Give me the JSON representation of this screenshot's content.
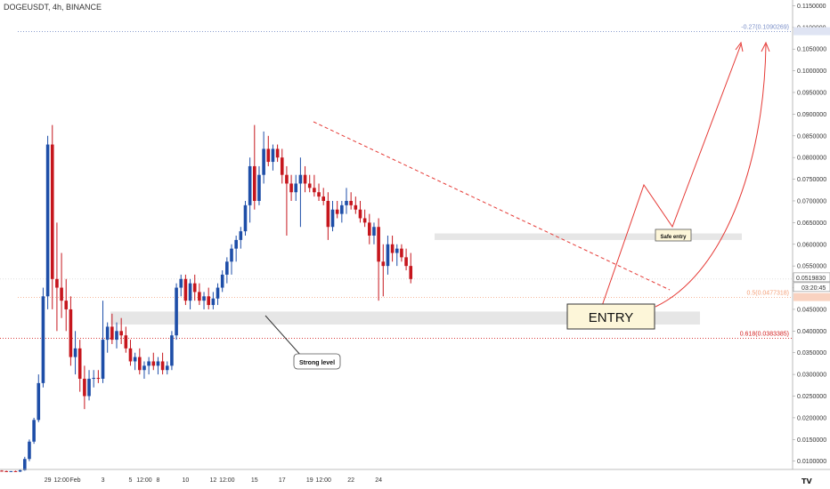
{
  "header": {
    "title": "DOGEUSDT, 4h, BINANCE"
  },
  "watermark": {
    "logo": "TV"
  },
  "colors": {
    "up": "#1e4ea8",
    "down": "#c6161d",
    "fib_top": "#7a8fc8",
    "fib_mid": "#f4a07a",
    "fib_low": "#d32020",
    "trend": "#e53935",
    "arrow": "#e53935"
  },
  "chart_data": {
    "type": "candlestick",
    "title": "DOGEUSDT, 4h, BINANCE",
    "ylim": [
      0.0085,
      0.1155
    ],
    "y_ticks": [
      "0.1150000",
      "0.1100000",
      "0.1050000",
      "0.1000000",
      "0.0950000",
      "0.0900000",
      "0.0850000",
      "0.0800000",
      "0.0750000",
      "0.0700000",
      "0.0650000",
      "0.0600000",
      "0.0550000",
      "0.0500000",
      "0.0450000",
      "0.0400000",
      "0.0350000",
      "0.0300000",
      "0.0250000",
      "0.0200000",
      "0.0150000",
      "0.0100000"
    ],
    "x_ticks": [
      {
        "label": "29",
        "t": 10
      },
      {
        "label": "12:00",
        "t": 13
      },
      {
        "label": "Feb",
        "t": 16
      },
      {
        "label": "3",
        "t": 22
      },
      {
        "label": "5",
        "t": 28
      },
      {
        "label": "12:00",
        "t": 31
      },
      {
        "label": "8",
        "t": 34
      },
      {
        "label": "10",
        "t": 40
      },
      {
        "label": "12",
        "t": 46
      },
      {
        "label": "12:00",
        "t": 49
      },
      {
        "label": "15",
        "t": 55
      },
      {
        "label": "17",
        "t": 61
      },
      {
        "label": "19",
        "t": 67
      },
      {
        "label": "12:00",
        "t": 70
      },
      {
        "label": "22",
        "t": 76
      },
      {
        "label": "24",
        "t": 82
      }
    ],
    "candles": [
      [
        0.0078,
        0.0079,
        0.0076,
        0.0077
      ],
      [
        0.0077,
        0.0078,
        0.0075,
        0.0076
      ],
      [
        0.0076,
        0.0077,
        0.0075,
        0.0077
      ],
      [
        0.0077,
        0.0078,
        0.0076,
        0.0076
      ],
      [
        0.0076,
        0.0081,
        0.0075,
        0.0079
      ],
      [
        0.0079,
        0.011,
        0.0078,
        0.0105
      ],
      [
        0.0105,
        0.015,
        0.01,
        0.0145
      ],
      [
        0.0145,
        0.02,
        0.014,
        0.0195
      ],
      [
        0.0195,
        0.03,
        0.019,
        0.028
      ],
      [
        0.028,
        0.05,
        0.027,
        0.048
      ],
      [
        0.048,
        0.085,
        0.045,
        0.083
      ],
      [
        0.083,
        0.0875,
        0.045,
        0.052
      ],
      [
        0.052,
        0.065,
        0.04,
        0.05
      ],
      [
        0.05,
        0.058,
        0.043,
        0.047
      ],
      [
        0.047,
        0.052,
        0.04,
        0.045
      ],
      [
        0.045,
        0.048,
        0.032,
        0.034
      ],
      [
        0.034,
        0.04,
        0.03,
        0.036
      ],
      [
        0.036,
        0.038,
        0.026,
        0.029
      ],
      [
        0.029,
        0.032,
        0.022,
        0.025
      ],
      [
        0.025,
        0.031,
        0.024,
        0.029
      ],
      [
        0.029,
        0.031,
        0.027,
        0.0292
      ],
      [
        0.0292,
        0.031,
        0.028,
        0.029
      ],
      [
        0.029,
        0.047,
        0.028,
        0.038
      ],
      [
        0.038,
        0.042,
        0.035,
        0.041
      ],
      [
        0.041,
        0.044,
        0.037,
        0.038
      ],
      [
        0.038,
        0.042,
        0.036,
        0.04
      ],
      [
        0.04,
        0.043,
        0.037,
        0.039
      ],
      [
        0.039,
        0.041,
        0.035,
        0.036
      ],
      [
        0.036,
        0.038,
        0.032,
        0.033
      ],
      [
        0.033,
        0.035,
        0.031,
        0.034
      ],
      [
        0.034,
        0.036,
        0.03,
        0.031
      ],
      [
        0.031,
        0.033,
        0.029,
        0.032
      ],
      [
        0.032,
        0.034,
        0.03,
        0.033
      ],
      [
        0.033,
        0.035,
        0.031,
        0.032
      ],
      [
        0.032,
        0.034,
        0.03,
        0.033
      ],
      [
        0.033,
        0.035,
        0.03,
        0.031
      ],
      [
        0.031,
        0.033,
        0.03,
        0.032
      ],
      [
        0.032,
        0.04,
        0.031,
        0.039
      ],
      [
        0.039,
        0.051,
        0.038,
        0.05
      ],
      [
        0.05,
        0.053,
        0.048,
        0.052
      ],
      [
        0.052,
        0.053,
        0.046,
        0.047
      ],
      [
        0.047,
        0.052,
        0.045,
        0.051
      ],
      [
        0.051,
        0.053,
        0.047,
        0.049
      ],
      [
        0.049,
        0.051,
        0.046,
        0.047
      ],
      [
        0.047,
        0.049,
        0.045,
        0.048
      ],
      [
        0.048,
        0.05,
        0.045,
        0.046
      ],
      [
        0.046,
        0.049,
        0.045,
        0.0475
      ],
      [
        0.0475,
        0.051,
        0.046,
        0.05
      ],
      [
        0.05,
        0.054,
        0.049,
        0.053
      ],
      [
        0.053,
        0.057,
        0.051,
        0.056
      ],
      [
        0.056,
        0.06,
        0.053,
        0.059
      ],
      [
        0.059,
        0.062,
        0.056,
        0.061
      ],
      [
        0.061,
        0.064,
        0.059,
        0.063
      ],
      [
        0.063,
        0.07,
        0.062,
        0.069
      ],
      [
        0.069,
        0.08,
        0.065,
        0.078
      ],
      [
        0.078,
        0.0875,
        0.068,
        0.07
      ],
      [
        0.07,
        0.078,
        0.069,
        0.076
      ],
      [
        0.076,
        0.086,
        0.074,
        0.082
      ],
      [
        0.082,
        0.085,
        0.078,
        0.079
      ],
      [
        0.079,
        0.083,
        0.077,
        0.082
      ],
      [
        0.082,
        0.083,
        0.079,
        0.08
      ],
      [
        0.08,
        0.082,
        0.074,
        0.076
      ],
      [
        0.076,
        0.078,
        0.062,
        0.074
      ],
      [
        0.074,
        0.076,
        0.07,
        0.072
      ],
      [
        0.072,
        0.076,
        0.07,
        0.074
      ],
      [
        0.074,
        0.08,
        0.064,
        0.076
      ],
      [
        0.076,
        0.078,
        0.072,
        0.074
      ],
      [
        0.074,
        0.076,
        0.072,
        0.073
      ],
      [
        0.073,
        0.076,
        0.071,
        0.072
      ],
      [
        0.072,
        0.074,
        0.07,
        0.071
      ],
      [
        0.071,
        0.073,
        0.069,
        0.07
      ],
      [
        0.07,
        0.072,
        0.061,
        0.064
      ],
      [
        0.064,
        0.07,
        0.063,
        0.068
      ],
      [
        0.068,
        0.07,
        0.066,
        0.067
      ],
      [
        0.067,
        0.07,
        0.065,
        0.069
      ],
      [
        0.069,
        0.073,
        0.067,
        0.07
      ],
      [
        0.07,
        0.072,
        0.068,
        0.069
      ],
      [
        0.069,
        0.071,
        0.067,
        0.068
      ],
      [
        0.068,
        0.07,
        0.065,
        0.066
      ],
      [
        0.066,
        0.068,
        0.064,
        0.065
      ],
      [
        0.065,
        0.067,
        0.06,
        0.062
      ],
      [
        0.062,
        0.065,
        0.06,
        0.064
      ],
      [
        0.064,
        0.066,
        0.047,
        0.056
      ],
      [
        0.056,
        0.06,
        0.048,
        0.055
      ],
      [
        0.055,
        0.062,
        0.053,
        0.06
      ],
      [
        0.06,
        0.062,
        0.056,
        0.058
      ],
      [
        0.058,
        0.06,
        0.055,
        0.059
      ],
      [
        0.059,
        0.06,
        0.056,
        0.057
      ],
      [
        0.057,
        0.059,
        0.054,
        0.055
      ],
      [
        0.055,
        0.058,
        0.051,
        0.052
      ]
    ],
    "annotations": {
      "fib_top": "-0.27(0.1090269)",
      "fib_mid": "0.5(0.0477318)",
      "fib_low": "0.618(0.0383385)",
      "price_tag": "0.0519830",
      "time_tag": "03:20:45",
      "strong_level": "Strong level",
      "safe_entry": "Safe entry",
      "entry": "ENTRY"
    }
  }
}
